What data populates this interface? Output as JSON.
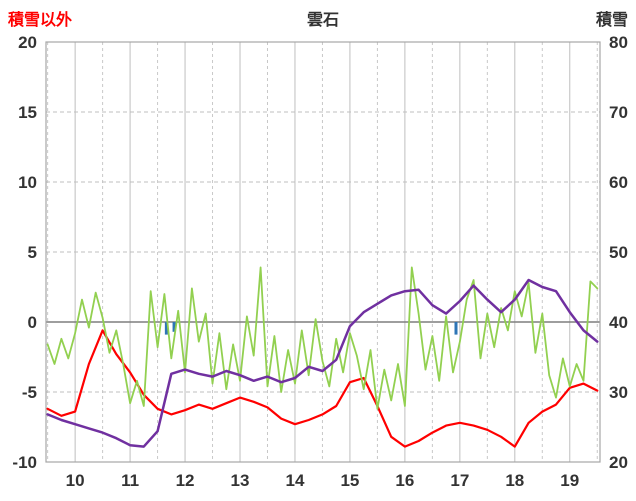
{
  "chart_data": {
    "type": "line",
    "title": "雲石",
    "left_axis": {
      "label": "積雪以外",
      "min": -10,
      "max": 20,
      "ticks": [
        20,
        15,
        10,
        5,
        0,
        -5,
        -10
      ]
    },
    "right_axis": {
      "label": "積雪",
      "min": 20,
      "max": 80,
      "ticks": [
        80,
        70,
        60,
        50,
        40,
        30,
        20
      ]
    },
    "x_axis": {
      "min": 9.47,
      "max": 19.55,
      "ticks": [
        10,
        11,
        12,
        13,
        14,
        15,
        16,
        17,
        18,
        19
      ]
    },
    "grid": {
      "major_color": "#BFBFBF",
      "minor_color": "#C8C8C8",
      "zero_color": "#7F7F7F",
      "border_color": "#A6A6A6"
    },
    "bars": {
      "name": "blue-bars",
      "color": "#2E75B6",
      "x": [
        11.66,
        11.8,
        16.93
      ],
      "values": [
        -0.9,
        -0.7,
        -0.9
      ]
    },
    "series": [
      {
        "name": "red-line",
        "color": "#FF0000",
        "width": 2.2,
        "axis": "left",
        "x_start": 9.5,
        "x_step": 0.25,
        "values": [
          -6.2,
          -6.7,
          -6.4,
          -3.0,
          -0.6,
          -2.3,
          -3.6,
          -5.2,
          -6.2,
          -6.6,
          -6.3,
          -5.9,
          -6.2,
          -5.8,
          -5.4,
          -5.7,
          -6.1,
          -6.9,
          -7.3,
          -7.0,
          -6.6,
          -6.0,
          -4.3,
          -4.0,
          -6.0,
          -8.2,
          -8.9,
          -8.5,
          -7.9,
          -7.4,
          -7.2,
          -7.4,
          -7.7,
          -8.2,
          -8.9,
          -7.2,
          -6.4,
          -5.9,
          -4.7,
          -4.4,
          -4.9
        ]
      },
      {
        "name": "green-line",
        "color": "#92D050",
        "width": 1.8,
        "axis": "left",
        "x_start": 9.5,
        "x_step": 0.125,
        "values": [
          -1.6,
          -3.0,
          -1.2,
          -2.6,
          -0.8,
          1.6,
          -0.4,
          2.1,
          0.3,
          -2.2,
          -0.6,
          -3.0,
          -5.8,
          -4.2,
          -6.0,
          2.2,
          -1.8,
          2.0,
          -2.6,
          0.8,
          -3.6,
          2.4,
          -1.4,
          0.6,
          -4.4,
          -0.8,
          -4.8,
          -1.6,
          -4.2,
          0.4,
          -2.4,
          3.9,
          -4.6,
          -1.0,
          -5.0,
          -2.0,
          -4.4,
          -0.6,
          -3.8,
          0.2,
          -2.8,
          -4.6,
          -1.2,
          -3.6,
          -0.8,
          -2.4,
          -4.8,
          -2.0,
          -6.2,
          -3.4,
          -5.6,
          -3.0,
          -6.0,
          3.9,
          0.6,
          -3.4,
          -1.0,
          -4.2,
          0.4,
          -3.6,
          -1.4,
          1.6,
          3.0,
          -2.6,
          0.6,
          -1.8,
          1.0,
          -0.6,
          2.2,
          0.4,
          2.8,
          -2.2,
          0.6,
          -3.8,
          -5.4,
          -2.6,
          -4.6,
          -3.0,
          -4.2,
          2.9,
          2.4
        ]
      },
      {
        "name": "purple-line",
        "color": "#7030A0",
        "width": 2.5,
        "axis": "left",
        "x_start": 9.5,
        "x_step": 0.25,
        "values": [
          -6.6,
          -7.0,
          -7.3,
          -7.6,
          -7.9,
          -8.3,
          -8.8,
          -8.9,
          -7.8,
          -3.7,
          -3.4,
          -3.7,
          -3.9,
          -3.5,
          -3.8,
          -4.2,
          -3.9,
          -4.3,
          -4.0,
          -3.2,
          -3.5,
          -2.7,
          -0.3,
          0.7,
          1.3,
          1.9,
          2.2,
          2.3,
          1.2,
          0.6,
          1.5,
          2.6,
          1.6,
          0.7,
          1.6,
          3.0,
          2.5,
          2.2,
          0.7,
          -0.6,
          -1.4
        ]
      }
    ]
  }
}
